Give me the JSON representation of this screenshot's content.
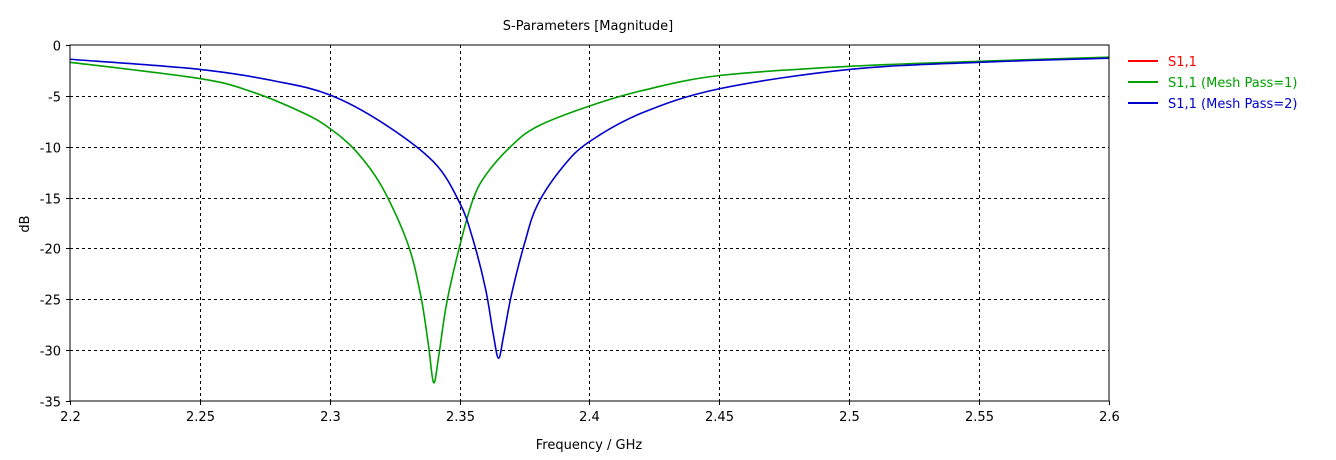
{
  "chart_data": {
    "type": "line",
    "title": "S-Parameters [Magnitude]",
    "xlabel": "Frequency / GHz",
    "ylabel": "dB",
    "xlim": [
      2.2,
      2.6
    ],
    "ylim": [
      -35,
      0
    ],
    "xticks": [
      2.2,
      2.25,
      2.3,
      2.35,
      2.4,
      2.45,
      2.5,
      2.55,
      2.6
    ],
    "xtick_labels": [
      "2.2",
      "2.25",
      "2.3",
      "2.35",
      "2.4",
      "2.45",
      "2.5",
      "2.55",
      "2.6"
    ],
    "yticks": [
      0,
      -5,
      -10,
      -15,
      -20,
      -25,
      -30,
      -35
    ],
    "ytick_labels": [
      "0",
      "-5",
      "-10",
      "-15",
      "-20",
      "-25",
      "-30",
      "-35"
    ],
    "grid": true,
    "legend_position": "right",
    "series": [
      {
        "name": "S1,1",
        "color": "#ff0000",
        "x": [],
        "y": []
      },
      {
        "name": "S1,1 (Mesh Pass=1)",
        "color": "#00a000",
        "x": [
          2.2,
          2.25,
          2.27,
          2.29,
          2.3,
          2.31,
          2.32,
          2.33,
          2.335,
          2.338,
          2.34,
          2.342,
          2.345,
          2.35,
          2.355,
          2.36,
          2.37,
          2.38,
          2.4,
          2.42,
          2.45,
          2.5,
          2.55,
          2.6
        ],
        "y": [
          -1.7,
          -3.3,
          -4.6,
          -6.7,
          -8.2,
          -10.4,
          -13.9,
          -19.5,
          -24.6,
          -29.5,
          -33.2,
          -30.5,
          -25.4,
          -19.8,
          -15.3,
          -12.8,
          -9.9,
          -8.0,
          -6.0,
          -4.5,
          -3.0,
          -2.1,
          -1.6,
          -1.2
        ]
      },
      {
        "name": "S1,1 (Mesh Pass=2)",
        "color": "#0000cc",
        "x": [
          2.2,
          2.25,
          2.28,
          2.3,
          2.32,
          2.34,
          2.35,
          2.355,
          2.36,
          2.363,
          2.365,
          2.367,
          2.37,
          2.375,
          2.38,
          2.39,
          2.4,
          2.42,
          2.45,
          2.5,
          2.55,
          2.6
        ],
        "y": [
          -1.4,
          -2.4,
          -3.6,
          -4.9,
          -7.6,
          -11.5,
          -15.5,
          -19.0,
          -24.0,
          -28.5,
          -30.8,
          -28.5,
          -24.5,
          -19.5,
          -15.7,
          -11.9,
          -9.5,
          -6.7,
          -4.3,
          -2.4,
          -1.7,
          -1.3
        ]
      }
    ]
  }
}
